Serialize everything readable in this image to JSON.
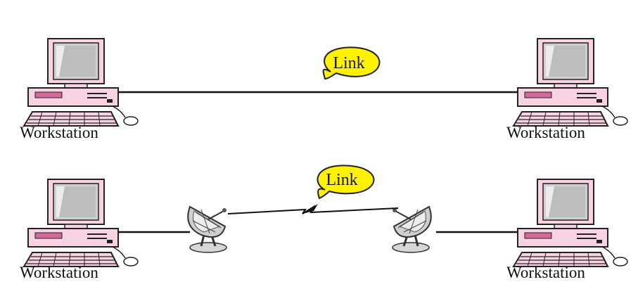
{
  "diagram": {
    "colors": {
      "workstation_body": "#f7d3e3",
      "workstation_outline": "#222222",
      "screen": "#c8c8c8",
      "accent": "#d46a9a",
      "callout_fill": "#fff200",
      "line": "#111111"
    },
    "top": {
      "left_label": "Workstation",
      "right_label": "Workstation",
      "link_label": "Link"
    },
    "bottom": {
      "left_label": "Workstation",
      "right_label": "Workstation",
      "link_label": "Link"
    },
    "icons": [
      "workstation-icon",
      "satellite-dish-icon",
      "mouse-icon",
      "keyboard-icon"
    ]
  }
}
